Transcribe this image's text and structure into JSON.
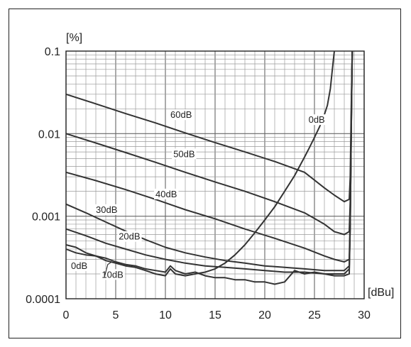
{
  "chart_data": {
    "type": "line",
    "title": "",
    "xlabel": "[dBu]",
    "ylabel": "[%]",
    "xlim": [
      0,
      30
    ],
    "ylim": [
      0.0001,
      0.1
    ],
    "yscale": "log",
    "grid": true,
    "x_ticks": [
      "0",
      "5",
      "10",
      "15",
      "20",
      "25",
      "30"
    ],
    "y_ticks": [
      "0.1",
      "0.01",
      "0.001",
      "0.0001"
    ],
    "colors": {
      "line": "#333333",
      "grid": "#9a9a9a",
      "axis": "#222222"
    },
    "series": [
      {
        "name": "60dB",
        "x": [
          0,
          3,
          6,
          9,
          12,
          15,
          18,
          21,
          24,
          26,
          27,
          28,
          28.5,
          28.6,
          28.7,
          28.8
        ],
        "y": [
          0.03,
          0.023,
          0.0175,
          0.0135,
          0.0102,
          0.0078,
          0.006,
          0.0046,
          0.0034,
          0.0022,
          0.0018,
          0.0015,
          0.0016,
          0.003,
          0.02,
          0.1
        ],
        "label_at": [
          10.5,
          0.0155
        ]
      },
      {
        "name": "50dB",
        "x": [
          0,
          3,
          6,
          9,
          12,
          15,
          18,
          21,
          24,
          26,
          27,
          28,
          28.5,
          28.6,
          28.7,
          28.8
        ],
        "y": [
          0.01,
          0.0077,
          0.0059,
          0.0045,
          0.0034,
          0.0026,
          0.002,
          0.0015,
          0.0011,
          0.0008,
          0.00065,
          0.0006,
          0.00065,
          0.0015,
          0.015,
          0.1
        ],
        "label_at": [
          10.8,
          0.0052
        ]
      },
      {
        "name": "40dB",
        "x": [
          0,
          3,
          6,
          9,
          12,
          15,
          18,
          21,
          24,
          26,
          27,
          28,
          28.5,
          28.6,
          28.7,
          28.8
        ],
        "y": [
          0.0034,
          0.0027,
          0.0021,
          0.0016,
          0.0012,
          0.00093,
          0.0007,
          0.00054,
          0.00041,
          0.00033,
          0.0003,
          0.00028,
          0.0003,
          0.001,
          0.012,
          0.1
        ],
        "label_at": [
          9.0,
          0.0017
        ]
      },
      {
        "name": "30dB",
        "x": [
          0,
          2,
          4,
          6,
          8,
          10,
          12,
          14,
          16,
          18,
          20,
          22,
          24,
          26,
          27,
          28,
          28.5,
          28.6,
          28.7,
          28.8
        ],
        "y": [
          0.0014,
          0.0011,
          0.00085,
          0.00066,
          0.00052,
          0.00042,
          0.00036,
          0.00032,
          0.00029,
          0.00027,
          0.00025,
          0.00024,
          0.00023,
          0.00022,
          0.00022,
          0.00022,
          0.00025,
          0.0008,
          0.01,
          0.1
        ],
        "label_at": [
          3.0,
          0.0011
        ]
      },
      {
        "name": "20dB",
        "x": [
          0,
          2,
          4,
          6,
          8,
          10,
          12,
          14,
          16,
          18,
          20,
          22,
          24,
          26,
          27,
          28,
          28.5,
          28.6,
          28.7,
          28.8
        ],
        "y": [
          0.0007,
          0.00058,
          0.00047,
          0.0004,
          0.00034,
          0.0003,
          0.00027,
          0.00025,
          0.00024,
          0.00023,
          0.00022,
          0.00021,
          0.00021,
          0.0002,
          0.0002,
          0.0002,
          0.00023,
          0.0008,
          0.01,
          0.1
        ],
        "label_at": [
          5.3,
          0.00052
        ]
      },
      {
        "name": "10dB",
        "x": [
          0,
          1,
          2,
          3,
          4,
          5,
          6,
          7,
          8,
          9,
          10,
          10.5,
          11,
          12,
          13,
          14,
          15,
          16,
          17,
          18,
          19,
          20,
          21,
          22,
          23,
          24,
          25,
          26,
          27,
          28,
          28.5,
          28.6,
          28.7,
          28.8
        ],
        "y": [
          0.00045,
          0.00042,
          0.00036,
          0.00033,
          0.00031,
          0.00028,
          0.00026,
          0.00025,
          0.00023,
          0.00022,
          0.00021,
          0.00025,
          0.00022,
          0.0002,
          0.00021,
          0.00019,
          0.00018,
          0.00018,
          0.00017,
          0.00017,
          0.00016,
          0.00016,
          0.00015,
          0.00016,
          0.00022,
          0.0002,
          0.00021,
          0.0002,
          0.00019,
          0.00019,
          0.0002,
          0.0008,
          0.01,
          0.1
        ],
        "label_at": [
          3.6,
          0.00018
        ]
      },
      {
        "name": "0dB",
        "x": [
          0,
          1,
          2,
          3,
          4,
          5,
          6,
          7,
          8,
          9,
          10,
          10.5,
          11,
          12,
          13,
          14,
          15,
          16,
          17,
          18,
          19,
          20,
          21,
          22,
          23,
          24,
          24.5,
          25,
          25.5,
          26,
          26.3,
          26.6,
          26.8,
          27
        ],
        "y": [
          0.0004,
          0.00036,
          0.00034,
          0.00033,
          0.00029,
          0.00027,
          0.00025,
          0.00024,
          0.00022,
          0.0002,
          0.00019,
          0.00023,
          0.0002,
          0.00019,
          0.0002,
          0.00021,
          0.00023,
          0.00027,
          0.00034,
          0.00045,
          0.00063,
          0.0009,
          0.0013,
          0.002,
          0.0031,
          0.0052,
          0.0068,
          0.009,
          0.012,
          0.017,
          0.022,
          0.035,
          0.06,
          0.1
        ],
        "label_at": [
          0.5,
          0.00023
        ],
        "label2_at": [
          24.4,
          0.0135
        ]
      }
    ]
  }
}
